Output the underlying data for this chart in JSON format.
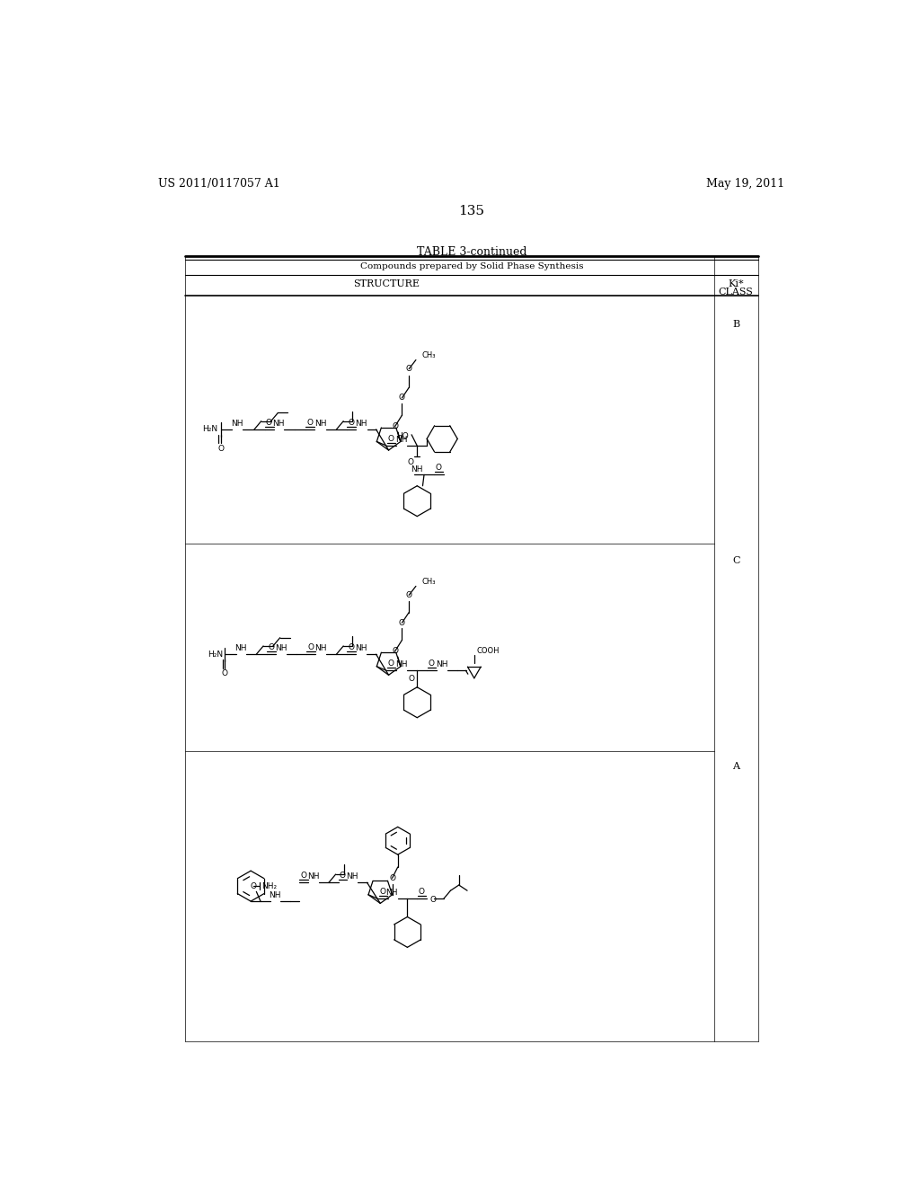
{
  "page_number": "135",
  "left_header": "US 2011/0117057 A1",
  "right_header": "May 19, 2011",
  "table_title": "TABLE 3-continued",
  "table_subtitle": "Compounds prepared by Solid Phase Synthesis",
  "col1_header": "STRUCTURE",
  "ki_header": "Ki*",
  "class_header": "CLASS",
  "class_b": "B",
  "class_c": "C",
  "class_a": "A",
  "bg_color": "#ffffff",
  "text_color": "#000000",
  "line_color": "#000000"
}
